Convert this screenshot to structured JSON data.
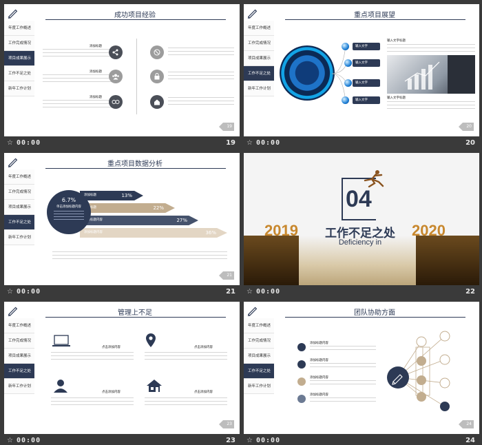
{
  "footer_time": "00:00",
  "sidebar_items": [
    "年度工作概述",
    "工作完成情况",
    "项目成果展示",
    "工作不足之处",
    "新年工作计划"
  ],
  "slides": {
    "s19": {
      "title": "成功项目经验",
      "page": "19",
      "footer_num": "19",
      "head": "添加标题"
    },
    "s20": {
      "title": "重点项目展望",
      "page": "20",
      "footer_num": "20",
      "pill": "输入文字",
      "text_head": "输入文字标题"
    },
    "s21": {
      "title": "重点项目数据分析",
      "page": "21",
      "footer_num": "21",
      "circle_pct": "6.7%",
      "circle_head": "单击添加标题内容",
      "arrows": [
        {
          "label": "添加标题",
          "pct": "13%"
        },
        {
          "label": "添加标题",
          "pct": "22%"
        },
        {
          "label": "添加标题内容",
          "pct": "27%"
        },
        {
          "label": "添加标题内容",
          "pct": "36%"
        }
      ]
    },
    "s22": {
      "num": "04",
      "year_left": "2019",
      "year_right": "2020",
      "title": "工作不足之处",
      "subtitle": "Deficiency in",
      "footer_num": "22"
    },
    "s23": {
      "title": "管理上不足",
      "page": "23",
      "footer_num": "23",
      "head": "点击添加内容"
    },
    "s24": {
      "title": "团队协助方面",
      "page": "24",
      "footer_num": "24",
      "head": "添加标题内容"
    }
  },
  "colors": {
    "navy": "#2d3a55",
    "tan": "#c2ad8f",
    "gold": "#c8882e",
    "blue_gray": "#6c7a93"
  }
}
